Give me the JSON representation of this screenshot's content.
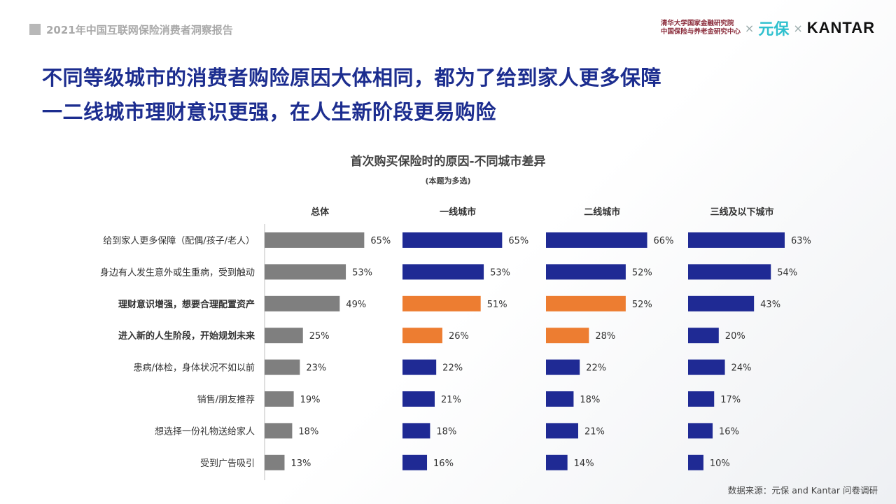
{
  "header": {
    "report_title": "2021年中国互联网保险消费者洞察报告",
    "institution_line1": "清华大学国家金融研究院",
    "institution_line2": "中国保险与养老金研究中心",
    "times": "×",
    "brand_yuanbao": "元保",
    "brand_kantar": "KANTAR"
  },
  "headline": {
    "line1": "不同等级城市的消费者购险原因大体相同，都为了给到家人更多保障",
    "line2": "一二线城市理财意识更强，在人生新阶段更易购险"
  },
  "chart_data": {
    "type": "bar",
    "orientation": "horizontal",
    "title": "首次购买保险时的原因-不同城市差异",
    "subtitle": "(本题为多选)",
    "categories": [
      "给到家人更多保障（配偶/孩子/老人）",
      "身边有人发生意外或生重病，受到触动",
      "理财意识增强，想要合理配置资产",
      "进入新的人生阶段，开始规划未来",
      "患病/体检，身体状况不如以前",
      "销售/朋友推荐",
      "想选择一份礼物送给家人",
      "受到广告吸引"
    ],
    "bold_categories": [
      2,
      3
    ],
    "series": [
      {
        "name": "总体",
        "values": [
          65,
          53,
          49,
          25,
          23,
          19,
          18,
          13
        ],
        "color": "#7f7f7f",
        "highlight": []
      },
      {
        "name": "一线城市",
        "values": [
          65,
          53,
          51,
          26,
          22,
          21,
          18,
          16
        ],
        "color": "#1f2a94",
        "highlight": [
          2,
          3
        ]
      },
      {
        "name": "二线城市",
        "values": [
          66,
          52,
          52,
          28,
          22,
          18,
          21,
          14
        ],
        "color": "#1f2a94",
        "highlight": [
          2,
          3
        ]
      },
      {
        "name": "三线及以下城市",
        "values": [
          63,
          54,
          43,
          20,
          24,
          17,
          16,
          10
        ],
        "color": "#1f2a94",
        "highlight": []
      }
    ],
    "highlight_color": "#ed7d31",
    "value_suffix": "%",
    "xlim": [
      0,
      100
    ]
  },
  "source": "数据来源：元保 and Kantar 问卷调研"
}
